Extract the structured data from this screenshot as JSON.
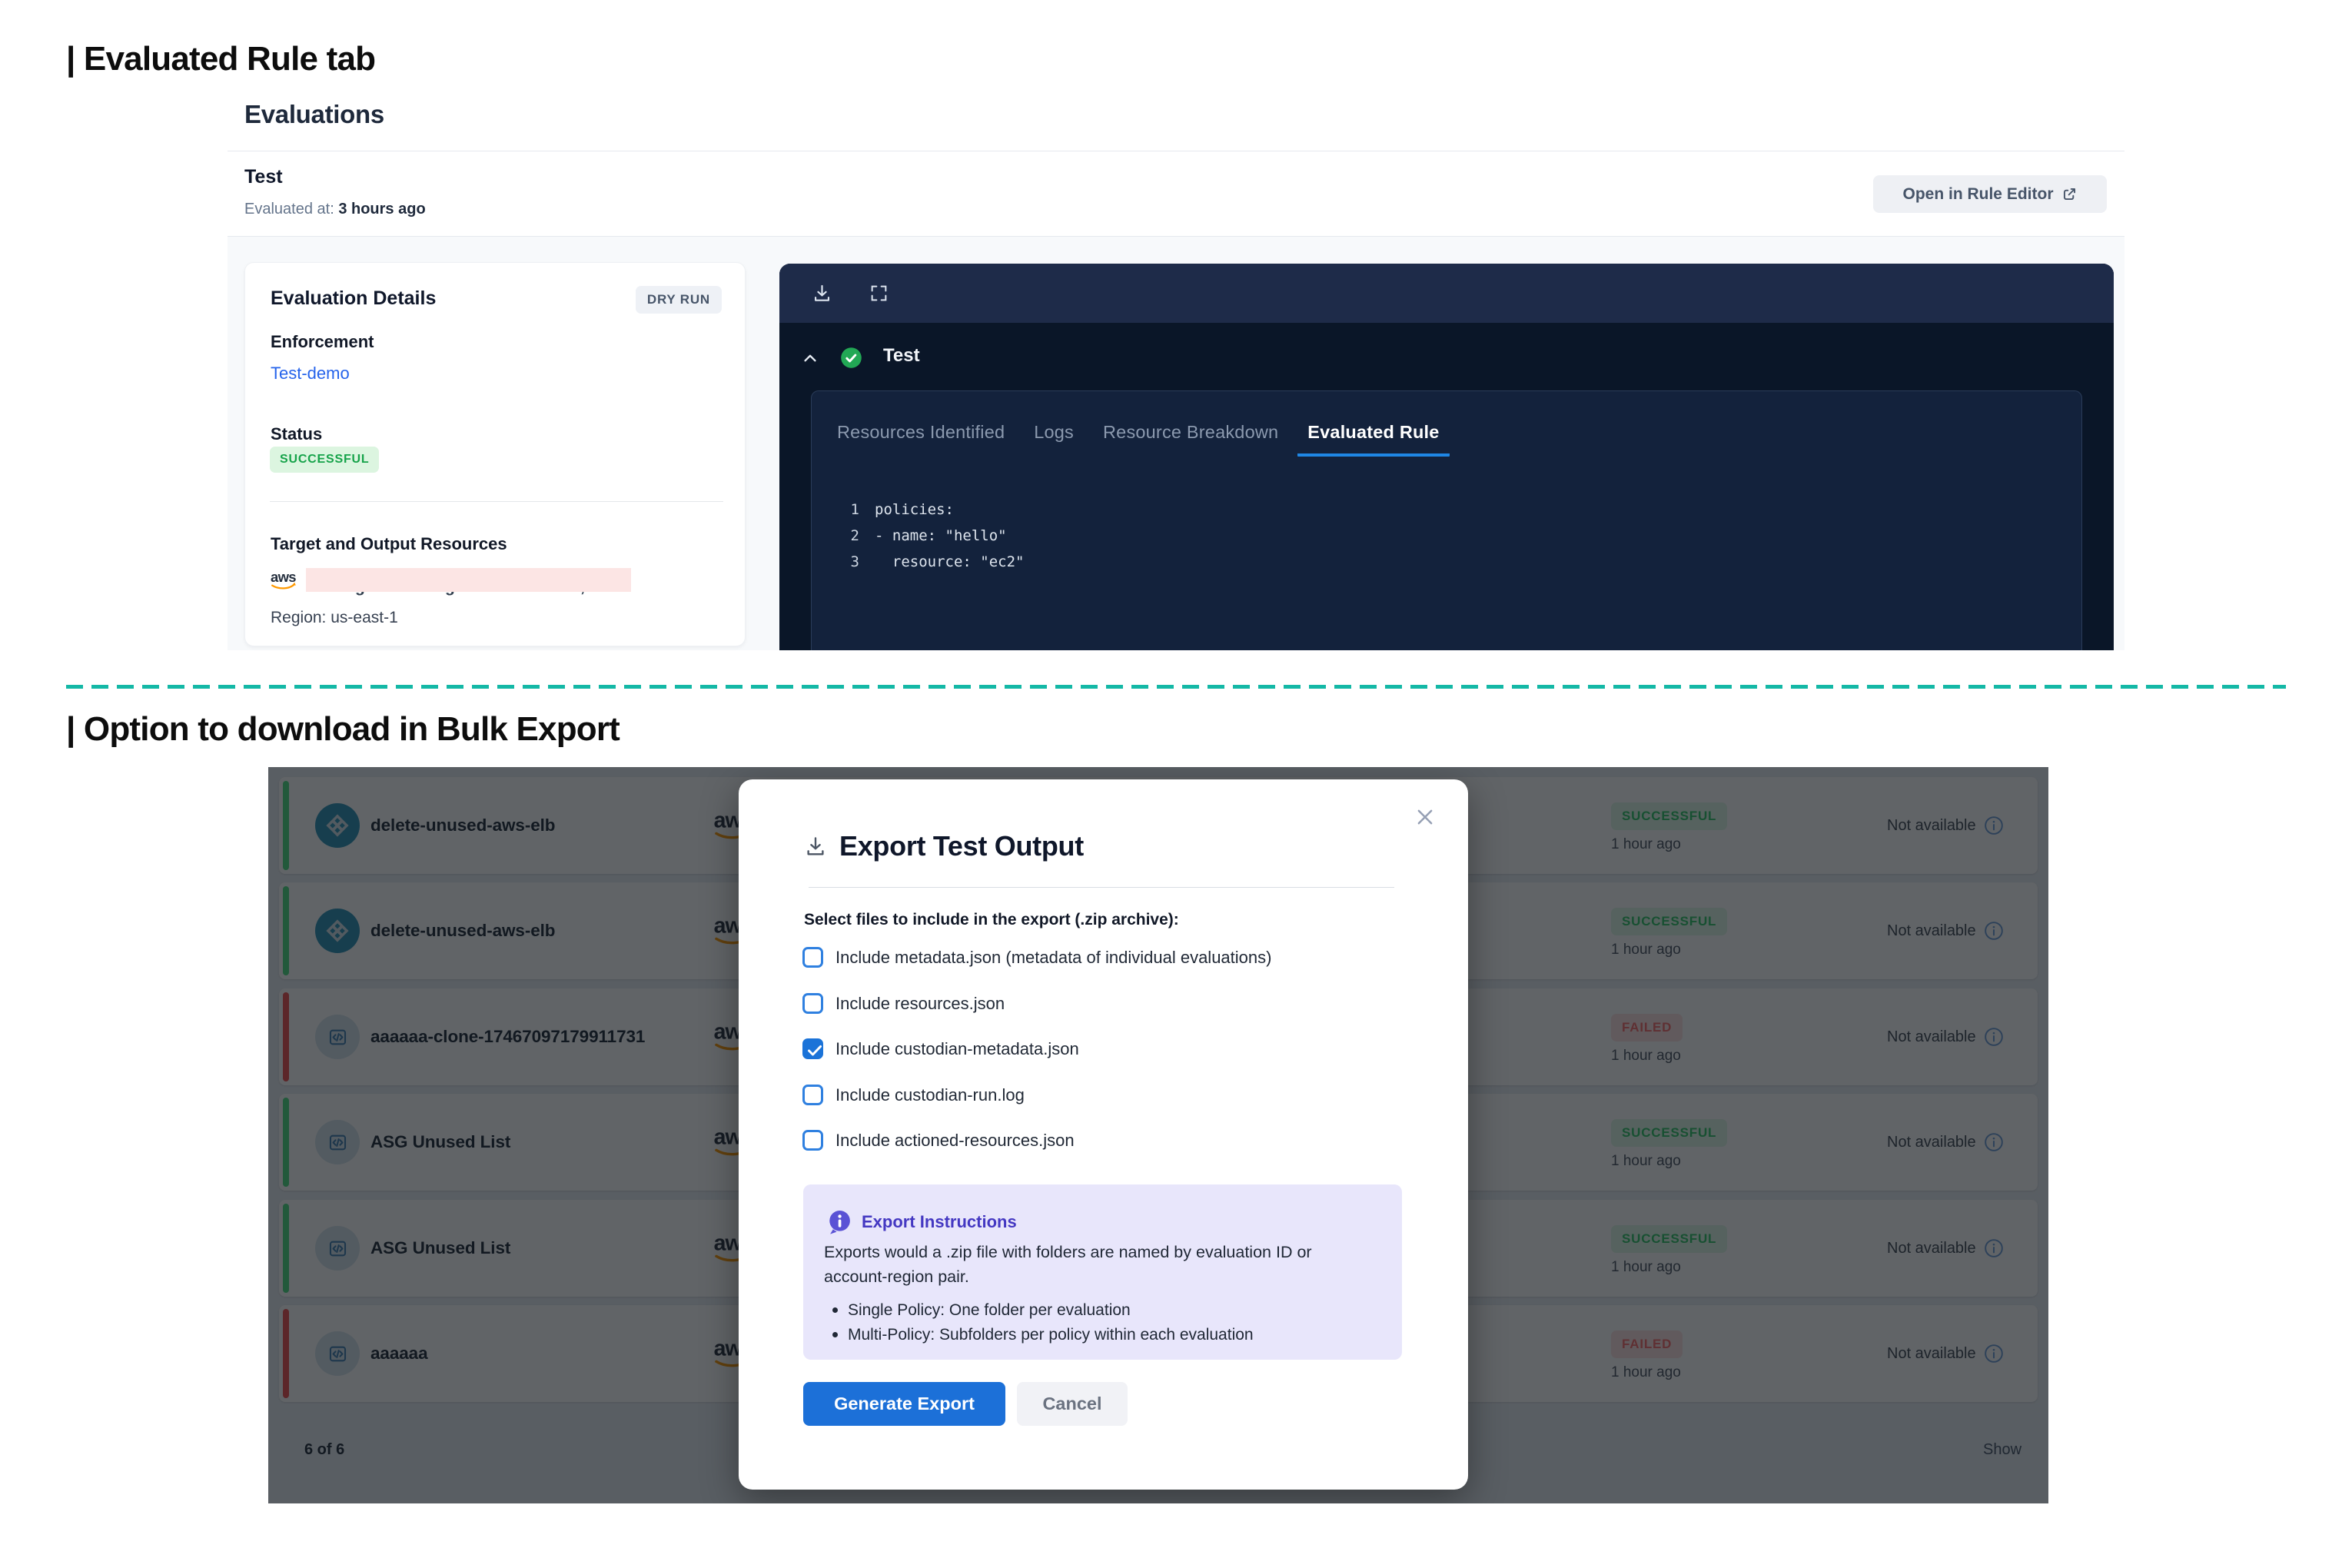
{
  "sections": {
    "evaluated_rule_tab": {
      "heading": "| Evaluated Rule tab"
    },
    "bulk_export": {
      "heading": "| Option to download in Bulk Export"
    }
  },
  "colors": {
    "accent_blue": "#1f87e5",
    "primary_button_blue": "#1c70d8",
    "success_green": "#16a34a",
    "failed_red": "#b32424",
    "teal_divider": "#14b8a6",
    "info_indigo": "#4438c2",
    "aws_orange": "#ff9900"
  },
  "evaluations": {
    "title": "Evaluations",
    "run_name": "Test",
    "evaluated_at_label": "Evaluated at:",
    "evaluated_at_value": "3 hours ago",
    "open_in_rule_editor_label": "Open in Rule Editor",
    "details": {
      "title": "Evaluation Details",
      "dry_run_badge": "DRY RUN",
      "enforcement_label": "Enforcement",
      "enforcement_value": "Test-demo",
      "status_label": "Status",
      "status_value": "SUCCESSFUL",
      "target_label": "Target and Output Resources",
      "aws_logo": "aws",
      "region": "Region: us-east-1"
    },
    "viewer": {
      "policy_name": "Test",
      "tabs": [
        "Resources Identified",
        "Logs",
        "Resource Breakdown",
        "Evaluated Rule"
      ],
      "active_tab": "Evaluated Rule",
      "code_lines": [
        {
          "num": "1",
          "text": "policies:"
        },
        {
          "num": "2",
          "text": "- name: \"hello\""
        },
        {
          "num": "3",
          "text": "  resource: \"ec2\""
        }
      ]
    }
  },
  "bulk_export": {
    "rows": [
      {
        "name": "delete-unused-aws-elb",
        "icon": "elb",
        "status": "SUCCESSFUL",
        "badge": "SUCCESSFUL",
        "time": "1 hour ago",
        "availability": "Not available",
        "aws": "aws"
      },
      {
        "name": "delete-unused-aws-elb",
        "icon": "elb",
        "status": "SUCCESSFUL",
        "badge": "SUCCESSFUL",
        "time": "1 hour ago",
        "availability": "Not available",
        "aws": "aws"
      },
      {
        "name": "aaaaaa-clone-17467097179911731",
        "icon": "code",
        "status": "FAILED",
        "badge": "FAILED",
        "time": "1 hour ago",
        "availability": "Not available",
        "aws": "aws"
      },
      {
        "name": "ASG Unused List",
        "icon": "code",
        "status": "SUCCESSFUL",
        "badge": "SUCCESSFUL",
        "time": "1 hour ago",
        "availability": "Not available",
        "aws": "aws"
      },
      {
        "name": "ASG Unused List",
        "icon": "code",
        "status": "SUCCESSFUL",
        "badge": "SUCCESSFUL",
        "time": "1 hour ago",
        "availability": "Not available",
        "aws": "aws"
      },
      {
        "name": "aaaaaa",
        "icon": "code",
        "status": "FAILED",
        "badge": "FAILED",
        "time": "1 hour ago",
        "availability": "Not available",
        "aws": "aws"
      }
    ],
    "footer_count": "6 of 6",
    "footer_show": "Show",
    "modal": {
      "title": "Export Test Output",
      "select_label": "Select files to include in the export (.zip archive):",
      "options": [
        {
          "label": "Include metadata.json (metadata of individual evaluations)",
          "checked": false
        },
        {
          "label": "Include resources.json",
          "checked": false
        },
        {
          "label": "Include custodian-metadata.json",
          "checked": true
        },
        {
          "label": "Include custodian-run.log",
          "checked": false
        },
        {
          "label": "Include actioned-resources.json",
          "checked": false
        }
      ],
      "instructions_title": "Export Instructions",
      "instructions_lines": [
        "Exports would a .zip file with folders are named by evaluation ID or",
        "account-region pair."
      ],
      "instructions_bullets": [
        "Single Policy: One folder per evaluation",
        "Multi-Policy: Subfolders per policy within each evaluation"
      ],
      "generate_button": "Generate Export",
      "cancel_button": "Cancel"
    }
  }
}
